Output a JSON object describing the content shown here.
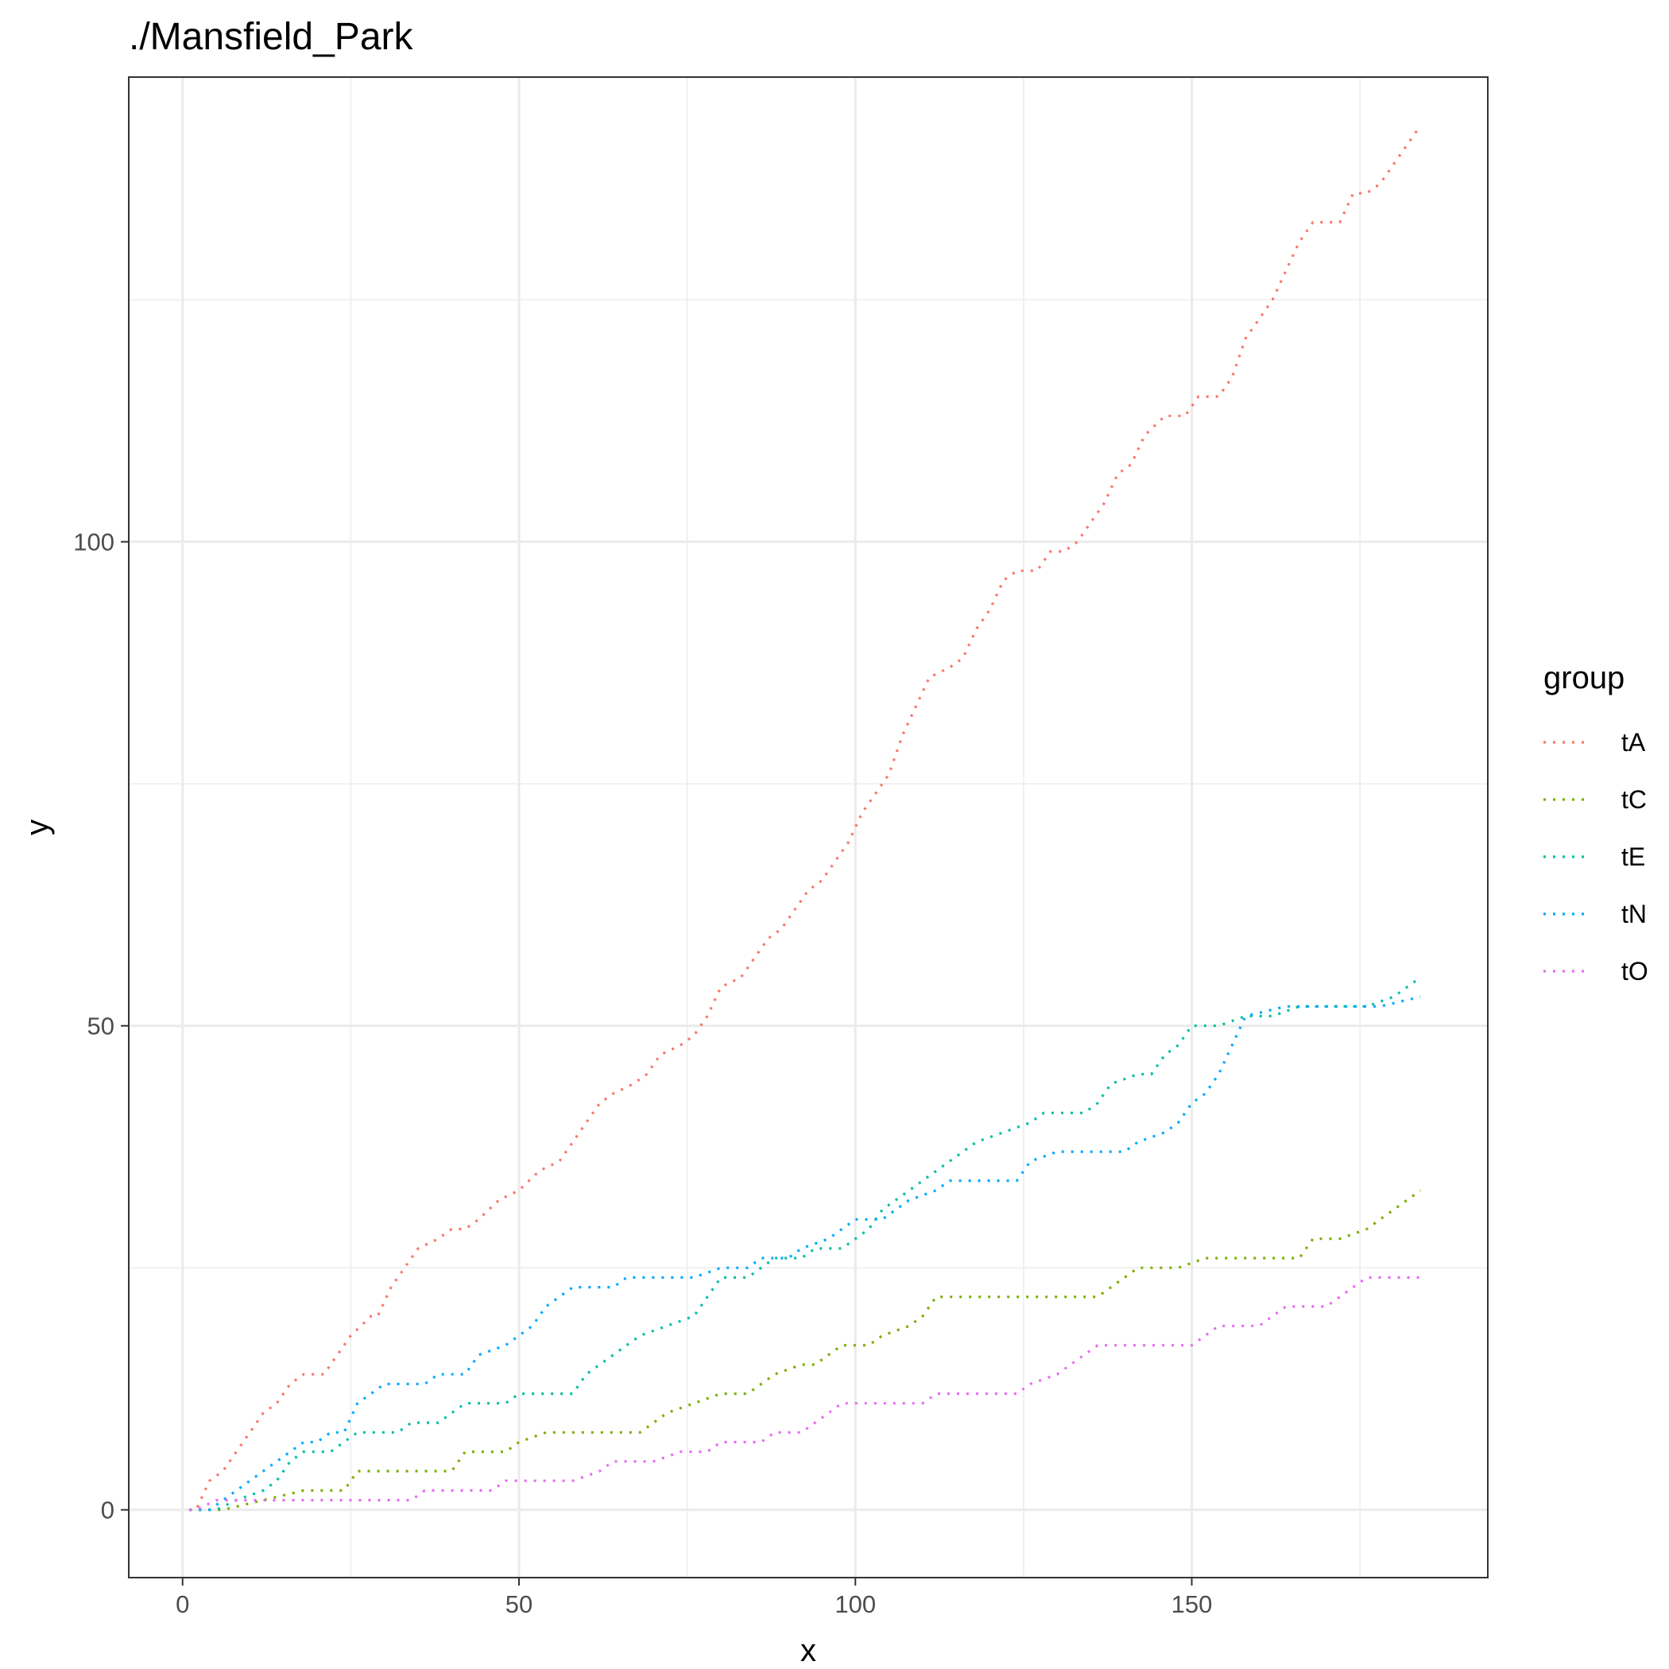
{
  "chart_data": {
    "type": "line",
    "title": "./Mansfield_Park",
    "xlabel": "x",
    "ylabel": "y",
    "xlim": [
      -8,
      194
    ],
    "ylim": [
      -7,
      148
    ],
    "x_ticks": [
      0,
      50,
      100,
      150
    ],
    "y_ticks": [
      0,
      50,
      100
    ],
    "x_tick_labels": [
      "0",
      "50",
      "100",
      "150"
    ],
    "y_tick_labels": [
      "0",
      "50",
      "100"
    ],
    "grid": true,
    "line_style": "dotted",
    "legend": {
      "title": "group",
      "position": "right"
    },
    "series": [
      {
        "name": "tA",
        "color": "#F8766D",
        "points": [
          [
            1,
            0
          ],
          [
            2,
            0
          ],
          [
            4,
            3
          ],
          [
            6,
            4
          ],
          [
            8,
            6
          ],
          [
            10,
            8
          ],
          [
            12,
            10
          ],
          [
            14,
            11
          ],
          [
            16,
            13
          ],
          [
            18,
            14
          ],
          [
            21,
            14
          ],
          [
            23,
            16
          ],
          [
            25,
            18
          ],
          [
            28,
            20
          ],
          [
            29,
            20
          ],
          [
            31,
            23
          ],
          [
            33,
            25
          ],
          [
            35,
            27
          ],
          [
            38,
            28
          ],
          [
            40,
            29
          ],
          [
            42,
            29
          ],
          [
            44,
            30
          ],
          [
            47,
            32
          ],
          [
            50,
            33
          ],
          [
            53,
            35
          ],
          [
            56,
            36
          ],
          [
            58,
            38
          ],
          [
            60,
            40
          ],
          [
            62,
            42
          ],
          [
            64,
            43
          ],
          [
            67,
            44
          ],
          [
            69,
            45
          ],
          [
            71,
            47
          ],
          [
            74,
            48
          ],
          [
            76,
            49
          ],
          [
            78,
            51
          ],
          [
            80,
            54
          ],
          [
            83,
            55
          ],
          [
            85,
            57
          ],
          [
            87,
            59
          ],
          [
            89,
            60
          ],
          [
            91,
            62
          ],
          [
            93,
            64
          ],
          [
            95,
            65
          ],
          [
            97,
            67
          ],
          [
            99,
            69
          ],
          [
            101,
            72
          ],
          [
            103,
            74
          ],
          [
            105,
            76
          ],
          [
            107,
            80
          ],
          [
            109,
            83
          ],
          [
            111,
            86
          ],
          [
            114,
            87
          ],
          [
            116,
            88
          ],
          [
            118,
            91
          ],
          [
            120,
            93
          ],
          [
            122,
            96
          ],
          [
            124,
            97
          ],
          [
            127,
            97
          ],
          [
            129,
            99
          ],
          [
            131,
            99
          ],
          [
            133,
            100
          ],
          [
            135,
            102
          ],
          [
            137,
            104
          ],
          [
            139,
            107
          ],
          [
            141,
            108
          ],
          [
            143,
            111
          ],
          [
            146,
            113
          ],
          [
            149,
            113
          ],
          [
            151,
            115
          ],
          [
            154,
            115
          ],
          [
            156,
            117
          ],
          [
            158,
            121
          ],
          [
            160,
            123
          ],
          [
            162,
            125
          ],
          [
            164,
            128
          ],
          [
            166,
            131
          ],
          [
            168,
            133
          ],
          [
            170,
            133
          ],
          [
            172,
            133
          ],
          [
            174,
            136
          ],
          [
            176,
            136
          ],
          [
            178,
            137
          ],
          [
            180,
            139
          ],
          [
            182,
            141
          ],
          [
            184,
            143
          ]
        ]
      },
      {
        "name": "tC",
        "color": "#7CAE00",
        "points": [
          [
            1,
            0
          ],
          [
            6,
            0
          ],
          [
            18,
            2
          ],
          [
            24,
            2
          ],
          [
            26,
            4
          ],
          [
            34,
            4
          ],
          [
            40,
            4
          ],
          [
            42,
            6
          ],
          [
            48,
            6
          ],
          [
            50,
            7
          ],
          [
            54,
            8
          ],
          [
            62,
            8
          ],
          [
            68,
            8
          ],
          [
            70,
            9
          ],
          [
            72,
            10
          ],
          [
            76,
            11
          ],
          [
            80,
            12
          ],
          [
            84,
            12
          ],
          [
            86,
            13
          ],
          [
            88,
            14
          ],
          [
            92,
            15
          ],
          [
            94,
            15
          ],
          [
            96,
            16
          ],
          [
            98,
            17
          ],
          [
            102,
            17
          ],
          [
            104,
            18
          ],
          [
            108,
            19
          ],
          [
            110,
            20
          ],
          [
            112,
            22
          ],
          [
            120,
            22
          ],
          [
            128,
            22
          ],
          [
            136,
            22
          ],
          [
            138,
            23
          ],
          [
            142,
            25
          ],
          [
            148,
            25
          ],
          [
            152,
            26
          ],
          [
            160,
            26
          ],
          [
            166,
            26
          ],
          [
            168,
            28
          ],
          [
            172,
            28
          ],
          [
            176,
            29
          ],
          [
            180,
            31
          ],
          [
            184,
            33
          ]
        ]
      },
      {
        "name": "tE",
        "color": "#00BFA5",
        "points": [
          [
            1,
            0
          ],
          [
            5,
            0
          ],
          [
            8,
            1
          ],
          [
            12,
            2
          ],
          [
            14,
            3
          ],
          [
            16,
            5
          ],
          [
            18,
            6
          ],
          [
            22,
            6
          ],
          [
            24,
            7
          ],
          [
            26,
            8
          ],
          [
            32,
            8
          ],
          [
            34,
            9
          ],
          [
            38,
            9
          ],
          [
            40,
            10
          ],
          [
            42,
            11
          ],
          [
            48,
            11
          ],
          [
            50,
            12
          ],
          [
            58,
            12
          ],
          [
            60,
            14
          ],
          [
            62,
            15
          ],
          [
            66,
            17
          ],
          [
            68,
            18
          ],
          [
            72,
            19
          ],
          [
            76,
            20
          ],
          [
            78,
            22
          ],
          [
            80,
            24
          ],
          [
            84,
            24
          ],
          [
            86,
            25
          ],
          [
            88,
            26
          ],
          [
            92,
            26
          ],
          [
            94,
            27
          ],
          [
            98,
            27
          ],
          [
            100,
            28
          ],
          [
            102,
            29
          ],
          [
            104,
            31
          ],
          [
            106,
            32
          ],
          [
            108,
            33
          ],
          [
            110,
            34
          ],
          [
            112,
            35
          ],
          [
            114,
            36
          ],
          [
            118,
            38
          ],
          [
            122,
            39
          ],
          [
            126,
            40
          ],
          [
            128,
            41
          ],
          [
            134,
            41
          ],
          [
            136,
            42
          ],
          [
            138,
            44
          ],
          [
            142,
            45
          ],
          [
            144,
            45
          ],
          [
            146,
            47
          ],
          [
            148,
            48
          ],
          [
            150,
            50
          ],
          [
            154,
            50
          ],
          [
            158,
            51
          ],
          [
            162,
            51
          ],
          [
            166,
            52
          ],
          [
            176,
            52
          ],
          [
            180,
            53
          ],
          [
            182,
            54
          ],
          [
            184,
            55
          ]
        ]
      },
      {
        "name": "tN",
        "color": "#00A9FF",
        "points": [
          [
            1,
            0
          ],
          [
            4,
            0
          ],
          [
            6,
            1
          ],
          [
            8,
            2
          ],
          [
            10,
            3
          ],
          [
            12,
            4
          ],
          [
            14,
            5
          ],
          [
            16,
            6
          ],
          [
            18,
            7
          ],
          [
            20,
            7
          ],
          [
            22,
            8
          ],
          [
            24,
            8
          ],
          [
            26,
            11
          ],
          [
            28,
            12
          ],
          [
            30,
            13
          ],
          [
            36,
            13
          ],
          [
            38,
            14
          ],
          [
            42,
            14
          ],
          [
            44,
            16
          ],
          [
            48,
            17
          ],
          [
            50,
            18
          ],
          [
            52,
            19
          ],
          [
            54,
            21
          ],
          [
            56,
            22
          ],
          [
            58,
            23
          ],
          [
            64,
            23
          ],
          [
            66,
            24
          ],
          [
            76,
            24
          ],
          [
            80,
            25
          ],
          [
            84,
            25
          ],
          [
            86,
            26
          ],
          [
            90,
            26
          ],
          [
            92,
            27
          ],
          [
            96,
            28
          ],
          [
            98,
            29
          ],
          [
            100,
            30
          ],
          [
            104,
            30
          ],
          [
            106,
            31
          ],
          [
            108,
            32
          ],
          [
            112,
            33
          ],
          [
            114,
            34
          ],
          [
            124,
            34
          ],
          [
            126,
            36
          ],
          [
            130,
            37
          ],
          [
            140,
            37
          ],
          [
            142,
            38
          ],
          [
            146,
            39
          ],
          [
            148,
            40
          ],
          [
            150,
            42
          ],
          [
            152,
            43
          ],
          [
            154,
            45
          ],
          [
            156,
            48
          ],
          [
            158,
            51
          ],
          [
            164,
            52
          ],
          [
            178,
            52
          ],
          [
            184,
            53
          ]
        ]
      },
      {
        "name": "tO",
        "color": "#E76BF3",
        "points": [
          [
            1,
            0
          ],
          [
            2,
            0
          ],
          [
            5,
            1
          ],
          [
            20,
            1
          ],
          [
            34,
            1
          ],
          [
            36,
            2
          ],
          [
            46,
            2
          ],
          [
            48,
            3
          ],
          [
            58,
            3
          ],
          [
            62,
            4
          ],
          [
            64,
            5
          ],
          [
            70,
            5
          ],
          [
            74,
            6
          ],
          [
            78,
            6
          ],
          [
            80,
            7
          ],
          [
            86,
            7
          ],
          [
            88,
            8
          ],
          [
            92,
            8
          ],
          [
            94,
            9
          ],
          [
            96,
            10
          ],
          [
            98,
            11
          ],
          [
            110,
            11
          ],
          [
            112,
            12
          ],
          [
            124,
            12
          ],
          [
            126,
            13
          ],
          [
            130,
            14
          ],
          [
            132,
            15
          ],
          [
            134,
            16
          ],
          [
            136,
            17
          ],
          [
            150,
            17
          ],
          [
            152,
            18
          ],
          [
            154,
            19
          ],
          [
            160,
            19
          ],
          [
            162,
            20
          ],
          [
            164,
            21
          ],
          [
            170,
            21
          ],
          [
            172,
            22
          ],
          [
            174,
            23
          ],
          [
            176,
            24
          ],
          [
            184,
            24
          ]
        ]
      }
    ]
  }
}
